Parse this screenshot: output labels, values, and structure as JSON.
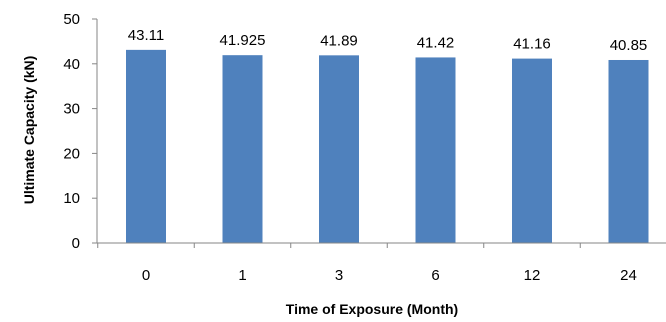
{
  "chart_data": {
    "type": "bar",
    "categories": [
      "0",
      "1",
      "3",
      "6",
      "12",
      "24"
    ],
    "values": [
      43.11,
      41.925,
      41.89,
      41.42,
      41.16,
      40.85
    ],
    "value_labels": [
      "43.11",
      "41.925",
      "41.89",
      "41.42",
      "41.16",
      "40.85"
    ],
    "title": "",
    "xlabel": "Time of Exposure (Month)",
    "ylabel": "Ultimate Capacity  (kN)",
    "ylim": [
      0,
      50
    ],
    "yticks": [
      0,
      10,
      20,
      30,
      40,
      50
    ],
    "grid": false,
    "bar_color": "#4f81bd",
    "axis_color": "#868686"
  }
}
